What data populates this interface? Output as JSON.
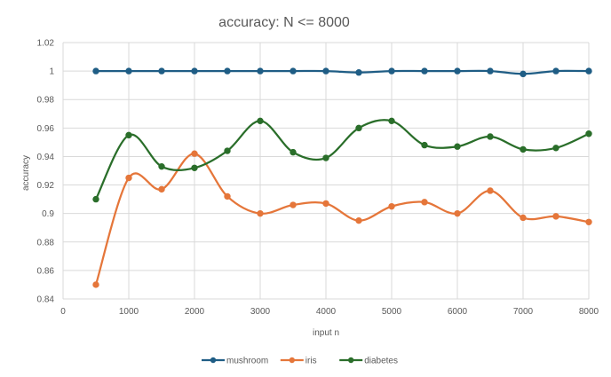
{
  "chart_data": {
    "type": "line",
    "title": "accuracy: N <= 8000",
    "xlabel": "input n",
    "ylabel": "accuracy",
    "xlim": [
      0,
      8000
    ],
    "ylim": [
      0.84,
      1.02
    ],
    "xticks": [
      0,
      1000,
      2000,
      3000,
      4000,
      5000,
      6000,
      7000,
      8000
    ],
    "yticks": [
      0.84,
      0.86,
      0.88,
      0.9,
      0.92,
      0.94,
      0.96,
      0.98,
      1,
      1.02
    ],
    "ytick_labels": [
      "0.84",
      "0.86",
      "0.88",
      "0.9",
      "0.92",
      "0.94",
      "0.96",
      "0.98",
      "1",
      "1.02"
    ],
    "grid": true,
    "smooth": true,
    "legend_position": "bottom",
    "x": [
      500,
      1000,
      1500,
      2000,
      2500,
      3000,
      3500,
      4000,
      4500,
      5000,
      5500,
      6000,
      6500,
      7000,
      7500,
      8000
    ],
    "series": [
      {
        "name": "mushroom",
        "color": "#1f5d85",
        "values": [
          1.0,
          1.0,
          1.0,
          1.0,
          1.0,
          1.0,
          1.0,
          1.0,
          0.999,
          1.0,
          1.0,
          1.0,
          1.0,
          0.998,
          1.0,
          1.0
        ]
      },
      {
        "name": "iris",
        "color": "#e5763a",
        "values": [
          0.85,
          0.925,
          0.917,
          0.942,
          0.912,
          0.9,
          0.906,
          0.907,
          0.895,
          0.905,
          0.908,
          0.9,
          0.916,
          0.897,
          0.898,
          0.894
        ]
      },
      {
        "name": "diabetes",
        "color": "#2a6e2a",
        "values": [
          0.91,
          0.955,
          0.933,
          0.932,
          0.944,
          0.965,
          0.943,
          0.939,
          0.96,
          0.965,
          0.948,
          0.947,
          0.954,
          0.945,
          0.946,
          0.956
        ]
      }
    ]
  }
}
